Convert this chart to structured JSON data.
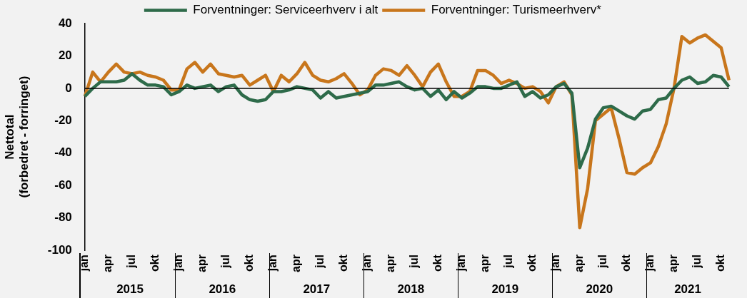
{
  "chart_data": {
    "type": "line",
    "ylabel": "Nettotal\n(forbedret - forringet)",
    "categories": [
      "jan",
      null,
      null,
      "apr",
      null,
      null,
      "jul",
      null,
      null,
      "okt",
      null,
      null,
      "jan",
      null,
      null,
      "apr",
      null,
      null,
      "jul",
      null,
      null,
      "okt",
      null,
      null,
      "jan",
      null,
      null,
      "apr",
      null,
      null,
      "jul",
      null,
      null,
      "okt",
      null,
      null,
      "jan",
      null,
      null,
      "apr",
      null,
      null,
      "jul",
      null,
      null,
      "okt",
      null,
      null,
      "jan",
      null,
      null,
      "apr",
      null,
      null,
      "jul",
      null,
      null,
      "okt",
      null,
      null,
      "jan",
      null,
      null,
      "apr",
      null,
      null,
      "jul",
      null,
      null,
      "okt",
      null,
      null,
      "jan",
      null,
      null,
      "apr",
      null,
      null,
      "jul",
      null,
      null,
      "okt",
      null
    ],
    "series": [
      {
        "name": "Forventninger: Serviceerhverv i alt",
        "color": "#2e6b4a",
        "values": [
          -5,
          0,
          4,
          4,
          4,
          5,
          9,
          5,
          2,
          2,
          1,
          -4,
          -2,
          2,
          0,
          1,
          2,
          -2,
          1,
          2,
          -4,
          -7,
          -8,
          -7,
          -2,
          -2,
          -1,
          1,
          0,
          -1,
          -6,
          -2,
          -6,
          -5,
          -4,
          -3,
          -2,
          2,
          2,
          3,
          4,
          1,
          -1,
          0,
          -5,
          -1,
          -7,
          -2,
          -6,
          -3,
          1,
          1,
          0,
          0,
          2,
          4,
          -5,
          -2,
          -6,
          -4,
          1,
          3,
          -3,
          -49,
          -37,
          -19,
          -12,
          -11,
          -14,
          -17,
          -19,
          -14,
          -13,
          -7,
          -6,
          0,
          5,
          7,
          3,
          4,
          8,
          7,
          1
        ]
      },
      {
        "name": "Forventninger: Turismeerhverv*",
        "color": "#c8761c",
        "values": [
          -5,
          10,
          4,
          10,
          15,
          10,
          9,
          10,
          8,
          7,
          5,
          -1,
          -1,
          12,
          16,
          10,
          15,
          9,
          8,
          7,
          8,
          2,
          5,
          8,
          -2,
          8,
          4,
          9,
          16,
          8,
          5,
          4,
          6,
          9,
          3,
          -4,
          -1,
          8,
          12,
          11,
          8,
          14,
          8,
          1,
          10,
          15,
          4,
          -5,
          -5,
          -2,
          11,
          11,
          8,
          3,
          5,
          3,
          0,
          1,
          -2,
          -9,
          1,
          4,
          -4,
          -86,
          -62,
          -20,
          -16,
          -12,
          -31,
          -52,
          -53,
          -49,
          -46,
          -36,
          -22,
          0,
          32,
          28,
          31,
          33,
          29,
          25,
          5
        ]
      }
    ],
    "ylim": [
      -100,
      40
    ],
    "yticks": [
      -100,
      -80,
      -60,
      -40,
      -20,
      0,
      20,
      40
    ],
    "ref_lines": [
      {
        "axis": "y",
        "value": 0,
        "color": "#000000"
      }
    ],
    "annotations": [
      "2015",
      "2016",
      "2017",
      "2018",
      "2019",
      "2020",
      "2021"
    ],
    "legend": "top",
    "grid": false,
    "marker": "none",
    "line_style": "solid"
  }
}
